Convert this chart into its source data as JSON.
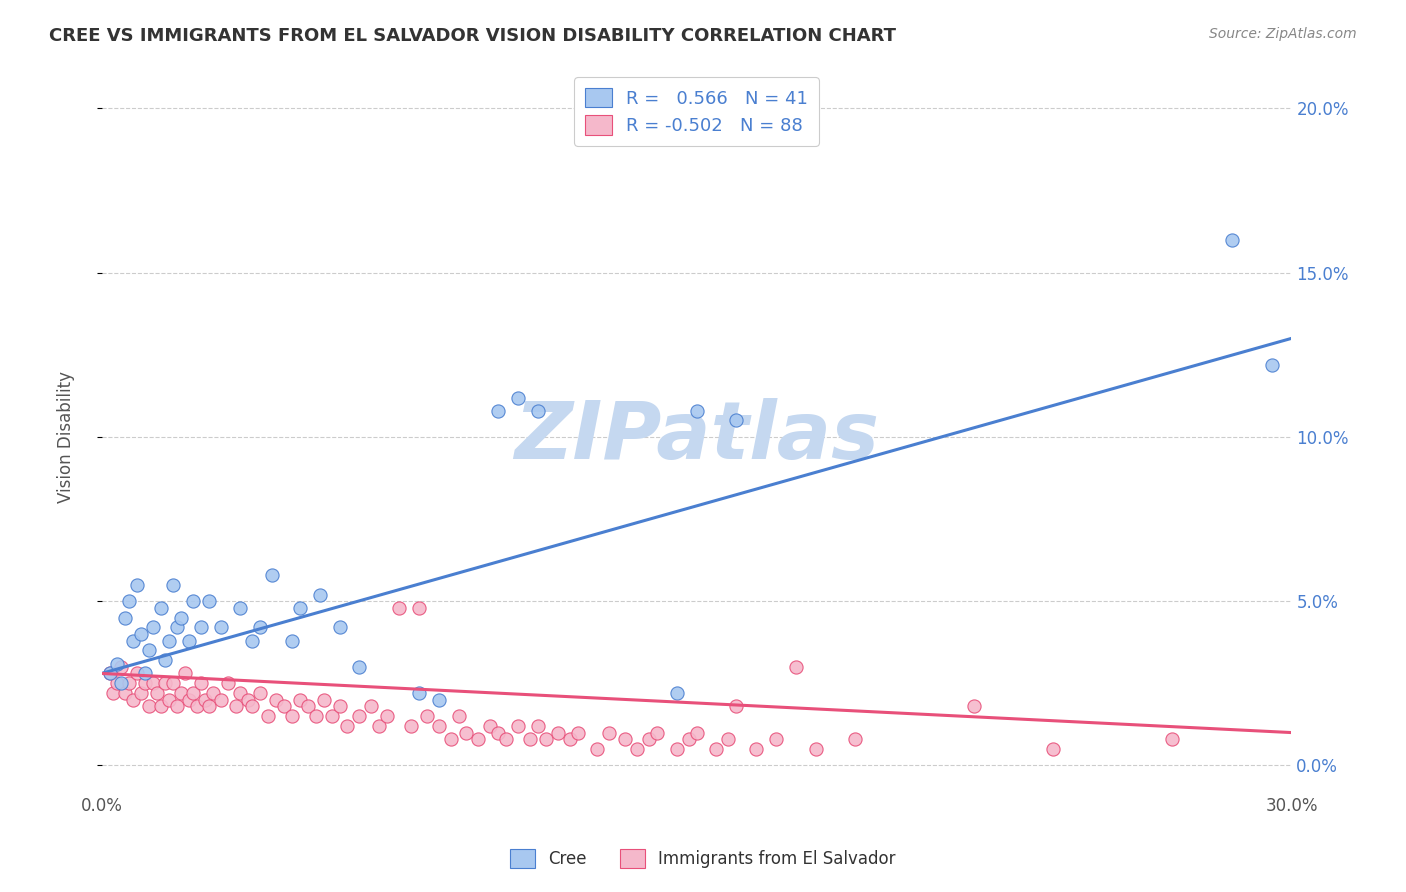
{
  "title": "CREE VS IMMIGRANTS FROM EL SALVADOR VISION DISABILITY CORRELATION CHART",
  "source": "Source: ZipAtlas.com",
  "ylabel": "Vision Disability",
  "xlim": [
    0.0,
    0.3
  ],
  "ylim": [
    -0.008,
    0.208
  ],
  "xticks": [
    0.0,
    0.3
  ],
  "yticks": [
    0.0,
    0.05,
    0.1,
    0.15,
    0.2
  ],
  "blue_color": "#A8C8F0",
  "pink_color": "#F5B8CB",
  "blue_line_color": "#4A7FD0",
  "pink_line_color": "#E8507A",
  "blue_R": 0.566,
  "blue_N": 41,
  "pink_R": -0.502,
  "pink_N": 88,
  "blue_scatter": [
    [
      0.002,
      0.028
    ],
    [
      0.004,
      0.031
    ],
    [
      0.005,
      0.025
    ],
    [
      0.006,
      0.045
    ],
    [
      0.007,
      0.05
    ],
    [
      0.008,
      0.038
    ],
    [
      0.009,
      0.055
    ],
    [
      0.01,
      0.04
    ],
    [
      0.011,
      0.028
    ],
    [
      0.012,
      0.035
    ],
    [
      0.013,
      0.042
    ],
    [
      0.015,
      0.048
    ],
    [
      0.016,
      0.032
    ],
    [
      0.017,
      0.038
    ],
    [
      0.018,
      0.055
    ],
    [
      0.019,
      0.042
    ],
    [
      0.02,
      0.045
    ],
    [
      0.022,
      0.038
    ],
    [
      0.023,
      0.05
    ],
    [
      0.025,
      0.042
    ],
    [
      0.027,
      0.05
    ],
    [
      0.03,
      0.042
    ],
    [
      0.035,
      0.048
    ],
    [
      0.038,
      0.038
    ],
    [
      0.04,
      0.042
    ],
    [
      0.043,
      0.058
    ],
    [
      0.048,
      0.038
    ],
    [
      0.05,
      0.048
    ],
    [
      0.055,
      0.052
    ],
    [
      0.06,
      0.042
    ],
    [
      0.065,
      0.03
    ],
    [
      0.08,
      0.022
    ],
    [
      0.085,
      0.02
    ],
    [
      0.1,
      0.108
    ],
    [
      0.105,
      0.112
    ],
    [
      0.11,
      0.108
    ],
    [
      0.145,
      0.022
    ],
    [
      0.15,
      0.108
    ],
    [
      0.16,
      0.105
    ],
    [
      0.285,
      0.16
    ],
    [
      0.295,
      0.122
    ]
  ],
  "pink_scatter": [
    [
      0.002,
      0.028
    ],
    [
      0.003,
      0.022
    ],
    [
      0.004,
      0.025
    ],
    [
      0.005,
      0.03
    ],
    [
      0.006,
      0.022
    ],
    [
      0.007,
      0.025
    ],
    [
      0.008,
      0.02
    ],
    [
      0.009,
      0.028
    ],
    [
      0.01,
      0.022
    ],
    [
      0.011,
      0.025
    ],
    [
      0.012,
      0.018
    ],
    [
      0.013,
      0.025
    ],
    [
      0.014,
      0.022
    ],
    [
      0.015,
      0.018
    ],
    [
      0.016,
      0.025
    ],
    [
      0.017,
      0.02
    ],
    [
      0.018,
      0.025
    ],
    [
      0.019,
      0.018
    ],
    [
      0.02,
      0.022
    ],
    [
      0.021,
      0.028
    ],
    [
      0.022,
      0.02
    ],
    [
      0.023,
      0.022
    ],
    [
      0.024,
      0.018
    ],
    [
      0.025,
      0.025
    ],
    [
      0.026,
      0.02
    ],
    [
      0.027,
      0.018
    ],
    [
      0.028,
      0.022
    ],
    [
      0.03,
      0.02
    ],
    [
      0.032,
      0.025
    ],
    [
      0.034,
      0.018
    ],
    [
      0.035,
      0.022
    ],
    [
      0.037,
      0.02
    ],
    [
      0.038,
      0.018
    ],
    [
      0.04,
      0.022
    ],
    [
      0.042,
      0.015
    ],
    [
      0.044,
      0.02
    ],
    [
      0.046,
      0.018
    ],
    [
      0.048,
      0.015
    ],
    [
      0.05,
      0.02
    ],
    [
      0.052,
      0.018
    ],
    [
      0.054,
      0.015
    ],
    [
      0.056,
      0.02
    ],
    [
      0.058,
      0.015
    ],
    [
      0.06,
      0.018
    ],
    [
      0.062,
      0.012
    ],
    [
      0.065,
      0.015
    ],
    [
      0.068,
      0.018
    ],
    [
      0.07,
      0.012
    ],
    [
      0.072,
      0.015
    ],
    [
      0.075,
      0.048
    ],
    [
      0.078,
      0.012
    ],
    [
      0.08,
      0.048
    ],
    [
      0.082,
      0.015
    ],
    [
      0.085,
      0.012
    ],
    [
      0.088,
      0.008
    ],
    [
      0.09,
      0.015
    ],
    [
      0.092,
      0.01
    ],
    [
      0.095,
      0.008
    ],
    [
      0.098,
      0.012
    ],
    [
      0.1,
      0.01
    ],
    [
      0.102,
      0.008
    ],
    [
      0.105,
      0.012
    ],
    [
      0.108,
      0.008
    ],
    [
      0.11,
      0.012
    ],
    [
      0.112,
      0.008
    ],
    [
      0.115,
      0.01
    ],
    [
      0.118,
      0.008
    ],
    [
      0.12,
      0.01
    ],
    [
      0.125,
      0.005
    ],
    [
      0.128,
      0.01
    ],
    [
      0.132,
      0.008
    ],
    [
      0.135,
      0.005
    ],
    [
      0.138,
      0.008
    ],
    [
      0.14,
      0.01
    ],
    [
      0.145,
      0.005
    ],
    [
      0.148,
      0.008
    ],
    [
      0.15,
      0.01
    ],
    [
      0.155,
      0.005
    ],
    [
      0.158,
      0.008
    ],
    [
      0.16,
      0.018
    ],
    [
      0.165,
      0.005
    ],
    [
      0.17,
      0.008
    ],
    [
      0.175,
      0.03
    ],
    [
      0.18,
      0.005
    ],
    [
      0.19,
      0.008
    ],
    [
      0.22,
      0.018
    ],
    [
      0.24,
      0.005
    ],
    [
      0.27,
      0.008
    ]
  ],
  "blue_line_x0": 0.0,
  "blue_line_y0": 0.028,
  "blue_line_x1": 0.3,
  "blue_line_y1": 0.13,
  "pink_line_x0": 0.0,
  "pink_line_y0": 0.028,
  "pink_line_x1": 0.3,
  "pink_line_y1": 0.01,
  "watermark_text": "ZIPatlas",
  "watermark_color": "#C5D8F0",
  "background_color": "#FFFFFF",
  "grid_color": "#CCCCCC",
  "title_color": "#333333",
  "source_color": "#888888",
  "ylabel_color": "#555555",
  "right_tick_color": "#4A7FD0",
  "bottom_label_blue": "Cree",
  "bottom_label_pink": "Immigrants from El Salvador"
}
